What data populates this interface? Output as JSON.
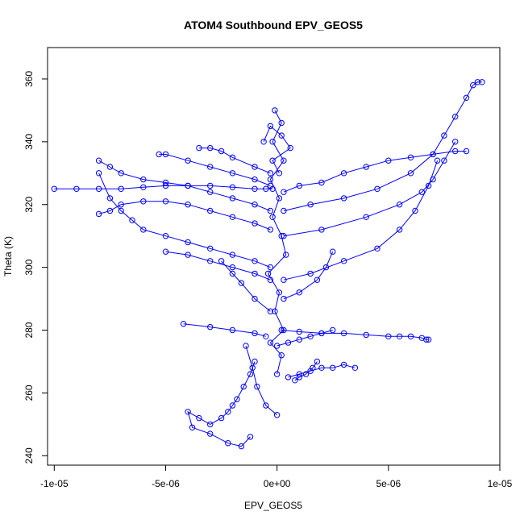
{
  "chart_data": {
    "type": "scatter",
    "title": "ATOM4 Southbound EPV_GEOS5",
    "xlabel": "EPV_GEOS5",
    "ylabel": "Theta (K)",
    "xlim": [
      -1.03e-05,
      1e-05
    ],
    "ylim": [
      237,
      370
    ],
    "x_ticks": [
      -1e-05,
      -5e-06,
      0,
      5e-06,
      1e-05
    ],
    "x_tick_labels": [
      "-1e-05",
      "-5e-06",
      "0e+00",
      "5e-06",
      "1e-05"
    ],
    "y_ticks": [
      240,
      260,
      280,
      300,
      320,
      340,
      360
    ],
    "y_tick_labels": [
      "240",
      "260",
      "280",
      "300",
      "320",
      "340",
      "360"
    ],
    "marker": "open-circle",
    "connected": true,
    "color": "#0000ff",
    "grid": false,
    "series": [
      {
        "x": [
          -1e-07,
          2e-07,
          -2e-07,
          3e-07,
          -3e-07,
          1e-07,
          -2e-07,
          2e-07,
          4e-07,
          -4e-07,
          1e-07,
          -1e-07,
          3e-07,
          -3e-07,
          2e-07,
          0.0
        ],
        "y": [
          350,
          346,
          340,
          334,
          328,
          322,
          316,
          310,
          304,
          298,
          292,
          286,
          280,
          276,
          272,
          266
        ]
      },
      {
        "x": [
          2e-07,
          1e-06,
          2e-06,
          3e-06,
          4e-06,
          5e-06,
          5.5e-06,
          6e-06,
          6.5e-06,
          6.7e-06,
          6.8e-06
        ],
        "y": [
          280,
          279.5,
          279,
          279,
          278.5,
          278,
          278,
          278,
          277.5,
          277,
          277
        ]
      },
      {
        "x": [
          -4.2e-06,
          -3e-06,
          -2e-06,
          -1e-06,
          -5e-07
        ],
        "y": [
          282,
          281,
          280,
          279,
          278
        ]
      },
      {
        "x": [
          5e-07,
          1e-06,
          1.5e-06,
          2e-06,
          2.5e-06,
          3e-06,
          3.5e-06
        ],
        "y": [
          265,
          266,
          267,
          268,
          268,
          269,
          268
        ]
      },
      {
        "x": [
          -1e-06,
          -1.2e-06,
          -1.5e-06,
          -1.8e-06,
          -2e-06,
          -2.2e-06,
          -2.5e-06,
          -3e-06,
          -3.5e-06,
          -4e-06,
          -3.8e-06,
          -3e-06,
          -2.2e-06,
          -1.6e-06,
          -1.2e-06
        ],
        "y": [
          270,
          266,
          262,
          258,
          256,
          254,
          252,
          250,
          252,
          254,
          249,
          247,
          244,
          243,
          246
        ]
      },
      {
        "x": [
          -2e-07,
          -5e-07,
          -1e-06,
          -2e-06,
          -3e-06,
          -4e-06,
          -5e-06,
          -6e-06,
          -7e-06,
          -8e-06,
          -9e-06,
          -1e-05
        ],
        "y": [
          325,
          325,
          325,
          325.5,
          326,
          326,
          326,
          325.5,
          325,
          325,
          325,
          325
        ]
      },
      {
        "x": [
          -3e-07,
          -1e-06,
          -2e-06,
          -3e-06,
          -4e-06,
          -5e-06,
          -6e-06,
          -7e-06,
          -7.5e-06,
          -8e-06
        ],
        "y": [
          312,
          314,
          316,
          318,
          320,
          321,
          321,
          320,
          318,
          317
        ]
      },
      {
        "x": [
          -3e-07,
          -1e-06,
          -2e-06,
          -3e-06,
          -4e-06,
          -5e-06,
          -6e-06,
          -6.5e-06,
          -7e-06,
          -7.5e-06,
          -8e-06
        ],
        "y": [
          300,
          302,
          304,
          306,
          308,
          310,
          312,
          315,
          318,
          322,
          330
        ]
      },
      {
        "x": [
          -3e-07,
          -1e-06,
          -2e-06,
          -3e-06,
          -4e-06,
          -5e-06,
          -6e-06,
          -7e-06,
          -7.5e-06,
          -8e-06
        ],
        "y": [
          318,
          320,
          322,
          324,
          326,
          327,
          328,
          330,
          332,
          334
        ]
      },
      {
        "x": [
          -3e-07,
          -1e-06,
          -2e-06,
          -3e-06,
          -4e-06,
          -5e-06,
          -5.3e-06
        ],
        "y": [
          326,
          328,
          330,
          332,
          334,
          336,
          336
        ]
      },
      {
        "x": [
          -3e-07,
          -1e-06,
          -2e-06,
          -2.5e-06,
          -3e-06,
          -3.5e-06
        ],
        "y": [
          330,
          332,
          335,
          337,
          338,
          338
        ]
      },
      {
        "x": [
          3e-07,
          1e-06,
          2e-06,
          3e-06,
          4e-06,
          5e-06,
          6e-06,
          7e-06,
          8e-06,
          8.5e-06
        ],
        "y": [
          324,
          326,
          327,
          330,
          332,
          334,
          335,
          336,
          337,
          337
        ]
      },
      {
        "x": [
          3e-07,
          1.5e-06,
          3e-06,
          4.5e-06,
          6e-06,
          7e-06,
          7.5e-06,
          8e-06,
          8.5e-06,
          8.8e-06,
          9e-06,
          9.2e-06
        ],
        "y": [
          318,
          320,
          322,
          325,
          330,
          336,
          342,
          348,
          354,
          358,
          359,
          359
        ]
      },
      {
        "x": [
          3e-07,
          2e-06,
          4e-06,
          5.5e-06,
          6.5e-06,
          7e-06,
          7.5e-06,
          8e-06
        ],
        "y": [
          310,
          312,
          316,
          320,
          324,
          328,
          334,
          340
        ]
      },
      {
        "x": [
          3e-07,
          1.5e-06,
          3e-06,
          4.5e-06,
          5.5e-06,
          6.2e-06,
          6.8e-06,
          7.2e-06
        ],
        "y": [
          296,
          298,
          302,
          306,
          312,
          318,
          326,
          334
        ]
      },
      {
        "x": [
          3e-07,
          1e-06,
          1.8e-06,
          2.2e-06,
          2.5e-06
        ],
        "y": [
          290,
          292,
          296,
          300,
          305
        ]
      },
      {
        "x": [
          -3e-07,
          -1e-06,
          -2e-06,
          -3e-06,
          -4e-06,
          -5e-06
        ],
        "y": [
          296,
          298,
          300,
          302,
          304,
          305
        ]
      },
      {
        "x": [
          -3e-07,
          -1e-06,
          -1.6e-06,
          -2e-06,
          -2.5e-06
        ],
        "y": [
          286,
          290,
          295,
          298,
          302
        ]
      },
      {
        "x": [
          0.0,
          5e-07,
          1e-06,
          1.5e-06,
          2e-06,
          2.5e-06
        ],
        "y": [
          275,
          276,
          277,
          278,
          279,
          280
        ]
      },
      {
        "x": [
          -6e-07,
          -3e-07,
          2e-07,
          6e-07,
          -2e-07,
          1e-07
        ],
        "y": [
          340,
          345,
          342,
          338,
          334,
          330
        ]
      },
      {
        "x": [
          -1.4e-06,
          -1.1e-06,
          -9e-07,
          -5e-07,
          0.0
        ],
        "y": [
          275,
          268,
          262,
          256,
          253
        ]
      },
      {
        "x": [
          8e-07,
          1e-06,
          1.3e-06,
          1.6e-06,
          1.8e-06
        ],
        "y": [
          264,
          265,
          266,
          268,
          270
        ]
      }
    ]
  }
}
